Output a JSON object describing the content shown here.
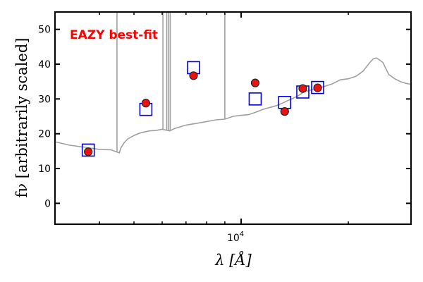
{
  "chart_data": {
    "type": "scatter",
    "title": "",
    "annotation": "EAZY best-fit",
    "xlabel": "λ [Å]",
    "ylabel": "fν [arbitrarily scaled]",
    "xscale": "log",
    "xlim": [
      3000,
      30000
    ],
    "ylim": [
      -6,
      55
    ],
    "grid": false,
    "legend": "none",
    "xticks": [
      {
        "value": 10000,
        "base": "10",
        "exp": "4"
      }
    ],
    "yticks": [
      0,
      10,
      20,
      30,
      40,
      50
    ],
    "colors": {
      "template": "#a0a0a0",
      "model": "#0000dd",
      "observed_fill": "#ee1111",
      "observed_edge": "#222222",
      "annotation": "#ff0000"
    },
    "series": [
      {
        "role": "template",
        "style": "line",
        "x": [
          3000,
          3300,
          3600,
          4000,
          4300,
          4550,
          4600,
          4700,
          4800,
          4900,
          5000,
          5200,
          5500,
          5800,
          6000,
          6300,
          6500,
          7000,
          7500,
          8000,
          8500,
          9000,
          9500,
          10000,
          10500,
          11000,
          11500,
          12000,
          12500,
          13000,
          13500,
          14000,
          14500,
          15000,
          16000,
          17000,
          18000,
          19000,
          20000,
          21000,
          22000,
          23000,
          23500,
          24000,
          25000,
          26000,
          27000,
          28000,
          29000,
          30000
        ],
        "y": [
          17.7,
          16.7,
          16.2,
          15.5,
          15.4,
          14.5,
          16.0,
          17.5,
          18.5,
          19.0,
          19.5,
          20.2,
          20.8,
          21.0,
          21.3,
          20.8,
          21.5,
          22.5,
          23.0,
          23.5,
          24.0,
          24.2,
          25.0,
          25.3,
          25.5,
          26.2,
          27.0,
          27.5,
          28.0,
          28.7,
          29.5,
          30.2,
          31.0,
          32.0,
          32.8,
          33.5,
          34.3,
          35.5,
          35.8,
          36.5,
          38.0,
          40.5,
          41.5,
          41.8,
          40.5,
          37.0,
          35.8,
          35.0,
          34.5,
          34.2
        ]
      },
      {
        "role": "template-lines",
        "style": "spike",
        "x": [
          4480,
          6030,
          6180,
          6250,
          6320,
          9000
        ],
        "y": [
          55,
          55,
          55,
          55,
          55,
          55
        ]
      },
      {
        "role": "model",
        "style": "open-square",
        "x": [
          3720,
          5400,
          7350,
          10950,
          13250,
          14900,
          16400
        ],
        "y": [
          15.3,
          27.0,
          39.0,
          30.0,
          29.0,
          32.0,
          33.3
        ]
      },
      {
        "role": "observed",
        "style": "filled-circle",
        "x": [
          3720,
          5400,
          7350,
          10950,
          13250,
          14900,
          16400
        ],
        "y": [
          14.8,
          28.8,
          36.7,
          34.6,
          26.4,
          33.0,
          33.2
        ]
      }
    ]
  }
}
